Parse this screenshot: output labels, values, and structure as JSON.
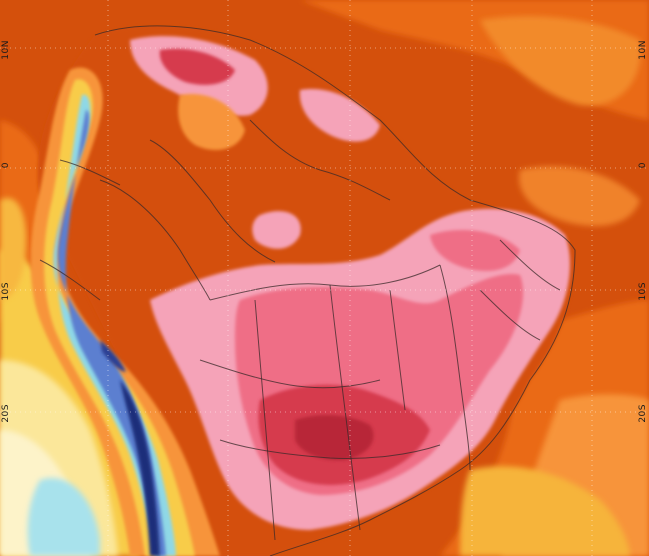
{
  "map": {
    "title": "",
    "latitude_labels": [
      "10N",
      "0",
      "10S",
      "20S"
    ],
    "palette": {
      "background_hot": "#d4500c",
      "warm_orange": "#ea6a12",
      "light_orange": "#f7943a",
      "pink_anomaly": "#f5a3b8",
      "rose": "#ef6e86",
      "deep_red": "#d63a4e",
      "dark_red": "#b82537",
      "yellow": "#f8cc4a",
      "pale_yellow": "#fbe79a",
      "cream": "#fdf3c9",
      "cyan": "#8fd8e6",
      "blue": "#5b7fd0",
      "navy": "#1e2d7a",
      "border_lines": "#3a2a2a"
    },
    "regions_depicted": []
  }
}
